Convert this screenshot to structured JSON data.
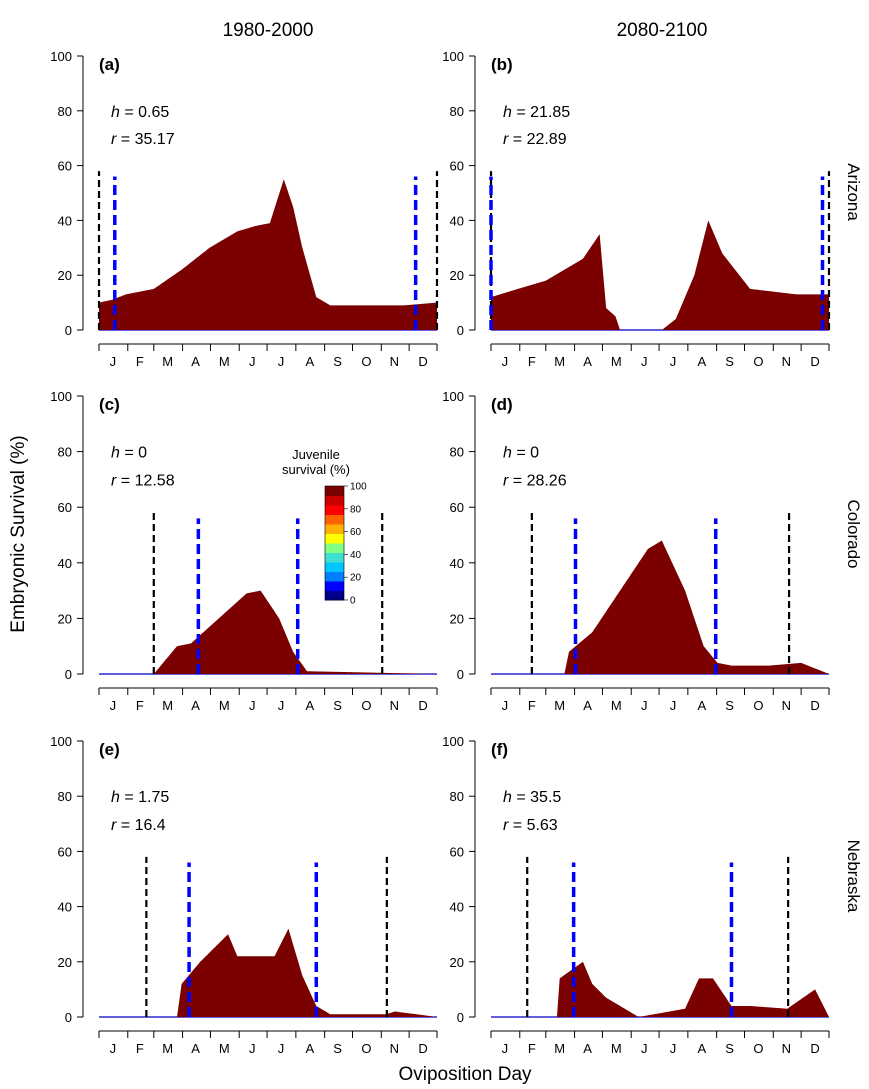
{
  "figure": {
    "column_titles": [
      "1980-2000",
      "2080-2100"
    ],
    "row_titles": [
      "Arizona",
      "Colorado",
      "Nebraska"
    ],
    "ylabel": "Embryonic Survival (%)",
    "xlabel": "Oviposition Day",
    "colorbar": {
      "title_line1": "Juvenile",
      "title_line2": "survival (%)",
      "ticks": [
        "100",
        "80",
        "60",
        "40",
        "20",
        "0"
      ],
      "colors": [
        "#00008b",
        "#0000ff",
        "#0080ff",
        "#00c8ff",
        "#40e0d0",
        "#80ff80",
        "#ffff00",
        "#ffb000",
        "#ff6000",
        "#ff0000",
        "#cc0000",
        "#7b0000"
      ]
    },
    "colors": {
      "bar": "#7b0000",
      "black_line": "#000000",
      "blue_line": "#0000ff",
      "zero_line": "#0000cc"
    }
  },
  "chart_data": [
    {
      "type": "bar",
      "panel": "(a)",
      "h_value": "0.65",
      "r_value": "35.17",
      "ylim": [
        0,
        100
      ],
      "yticks": [
        "0",
        "20",
        "40",
        "60",
        "80",
        "100"
      ],
      "month_ticks": [
        "J",
        "F",
        "M",
        "A",
        "M",
        "J",
        "J",
        "A",
        "S",
        "O",
        "N",
        "D"
      ],
      "x_days": [
        1,
        15,
        30,
        60,
        90,
        120,
        150,
        170,
        185,
        200,
        210,
        220,
        235,
        250,
        280,
        330,
        365
      ],
      "embryonic_survival": [
        10,
        11,
        13,
        15,
        22,
        30,
        36,
        38,
        39,
        55,
        45,
        30,
        12,
        9,
        9,
        9,
        10
      ],
      "black_dashed_days": [
        1,
        365
      ],
      "blue_dashed_days": [
        18,
        342
      ]
    },
    {
      "type": "bar",
      "panel": "(b)",
      "h_value": "21.85",
      "r_value": "22.89",
      "ylim": [
        0,
        100
      ],
      "yticks": [
        "0",
        "20",
        "40",
        "60",
        "80",
        "100"
      ],
      "month_ticks": [
        "J",
        "F",
        "M",
        "A",
        "M",
        "J",
        "J",
        "A",
        "S",
        "O",
        "N",
        "D"
      ],
      "x_days": [
        1,
        30,
        60,
        100,
        116,
        118,
        125,
        135,
        140,
        155,
        185,
        200,
        220,
        235,
        250,
        280,
        330,
        365
      ],
      "embryonic_survival": [
        12,
        15,
        18,
        26,
        34,
        35,
        8,
        5,
        0,
        0,
        0,
        4,
        20,
        40,
        28,
        15,
        13,
        13
      ],
      "black_dashed_days": [
        1,
        365
      ],
      "blue_dashed_days": [
        1,
        358
      ]
    },
    {
      "type": "bar",
      "panel": "(c)",
      "h_value": "0",
      "r_value": "12.58",
      "ylim": [
        0,
        100
      ],
      "yticks": [
        "0",
        "20",
        "40",
        "60",
        "80",
        "100"
      ],
      "month_ticks": [
        "J",
        "F",
        "M",
        "A",
        "M",
        "J",
        "J",
        "A",
        "S",
        "O",
        "N",
        "D"
      ],
      "x_days": [
        1,
        60,
        85,
        100,
        130,
        160,
        175,
        195,
        210,
        225,
        365
      ],
      "embryonic_survival": [
        0,
        0,
        10,
        11,
        20,
        29,
        30,
        20,
        8,
        1,
        0
      ],
      "black_dashed_days": [
        60,
        306
      ],
      "blue_dashed_days": [
        108,
        215
      ]
    },
    {
      "type": "bar",
      "panel": "(d)",
      "h_value": "0",
      "r_value": "28.26",
      "ylim": [
        0,
        100
      ],
      "yticks": [
        "0",
        "20",
        "40",
        "60",
        "80",
        "100"
      ],
      "month_ticks": [
        "J",
        "F",
        "M",
        "A",
        "M",
        "J",
        "J",
        "A",
        "S",
        "O",
        "N",
        "D"
      ],
      "x_days": [
        1,
        80,
        85,
        110,
        140,
        170,
        185,
        210,
        230,
        245,
        260,
        300,
        335,
        365
      ],
      "embryonic_survival": [
        0,
        0,
        8,
        15,
        30,
        45,
        48,
        30,
        10,
        4,
        3,
        3,
        4,
        0
      ],
      "black_dashed_days": [
        45,
        322
      ],
      "blue_dashed_days": [
        92,
        243
      ]
    },
    {
      "type": "bar",
      "panel": "(e)",
      "h_value": "1.75",
      "r_value": "16.4",
      "ylim": [
        0,
        100
      ],
      "yticks": [
        "0",
        "20",
        "40",
        "60",
        "80",
        "100"
      ],
      "month_ticks": [
        "J",
        "F",
        "M",
        "A",
        "M",
        "J",
        "J",
        "A",
        "S",
        "O",
        "N",
        "D"
      ],
      "x_days": [
        1,
        85,
        90,
        110,
        140,
        150,
        190,
        205,
        220,
        235,
        250,
        310,
        320,
        365
      ],
      "embryonic_survival": [
        0,
        0,
        12,
        20,
        30,
        22,
        22,
        32,
        15,
        4,
        1,
        1,
        2,
        0
      ],
      "black_dashed_days": [
        52,
        311
      ],
      "blue_dashed_days": [
        98,
        235
      ]
    },
    {
      "type": "bar",
      "panel": "(f)",
      "h_value": "35.5",
      "r_value": "5.63",
      "ylim": [
        0,
        100
      ],
      "yticks": [
        "0",
        "20",
        "40",
        "60",
        "80",
        "100"
      ],
      "month_ticks": [
        "J",
        "F",
        "M",
        "A",
        "M",
        "J",
        "J",
        "A",
        "S",
        "O",
        "N",
        "D"
      ],
      "x_days": [
        1,
        72,
        75,
        100,
        110,
        125,
        160,
        210,
        225,
        240,
        260,
        280,
        320,
        350,
        365
      ],
      "embryonic_survival": [
        0,
        0,
        14,
        20,
        12,
        7,
        0,
        3,
        14,
        14,
        4,
        4,
        3,
        10,
        0
      ],
      "black_dashed_days": [
        40,
        321
      ],
      "blue_dashed_days": [
        90,
        260
      ]
    }
  ]
}
